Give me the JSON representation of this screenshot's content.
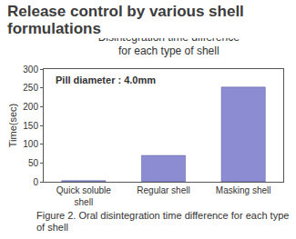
{
  "header": "Release control by various shell formulations",
  "chart_data": {
    "type": "bar",
    "title": "Disintegration time difference for each type of shell",
    "annotations": [
      "Pill diameter : 4.0mm"
    ],
    "y_label": "Time(sec)",
    "categories": [
      "Quick soluble shell",
      "Regular shell",
      "Masking shell"
    ],
    "values": [
      3,
      70,
      252
    ],
    "color": "#8c8cd2",
    "ylim": [
      0,
      300
    ],
    "yticks": [
      0,
      50,
      100,
      150,
      200,
      250,
      300
    ],
    "grid": false
  },
  "caption": "Figure 2. Oral disintegration time difference for each type of shell"
}
